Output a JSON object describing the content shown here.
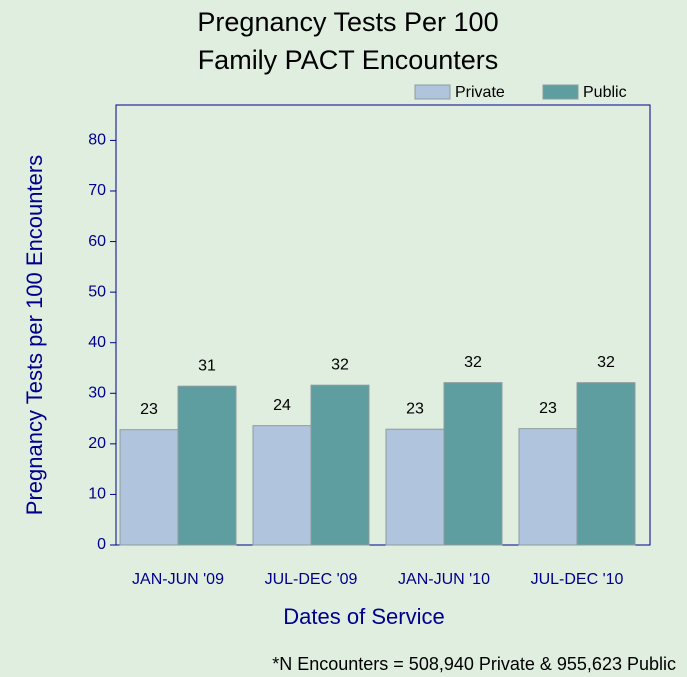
{
  "chart_data": {
    "type": "bar",
    "title": [
      "Pregnancy Tests Per 100",
      "Family PACT Encounters"
    ],
    "x_label": "Dates of Service",
    "y_label": "Pregnancy Tests per 100 Encounters",
    "footnote": "*N Encounters = 508,940 Private & 955,623 Public",
    "categories": [
      "JAN-JUN '09",
      "JUL-DEC '09",
      "JAN-JUN '10",
      "JUL-DEC '10"
    ],
    "series": [
      {
        "name": "Private",
        "color": "#b0c4de",
        "values": [
          22.8,
          23.6,
          22.9,
          23.0
        ],
        "value_labels": [
          "23",
          "24",
          "23",
          "23"
        ]
      },
      {
        "name": "Public",
        "color": "#5f9ea0",
        "values": [
          31.4,
          31.6,
          32.1,
          32.1
        ],
        "value_labels": [
          "31",
          "32",
          "32",
          "32"
        ]
      }
    ],
    "ylim": [
      0,
      87
    ],
    "yticks": [
      0,
      10,
      20,
      30,
      40,
      50,
      60,
      70,
      80
    ],
    "legend": "top-right"
  }
}
